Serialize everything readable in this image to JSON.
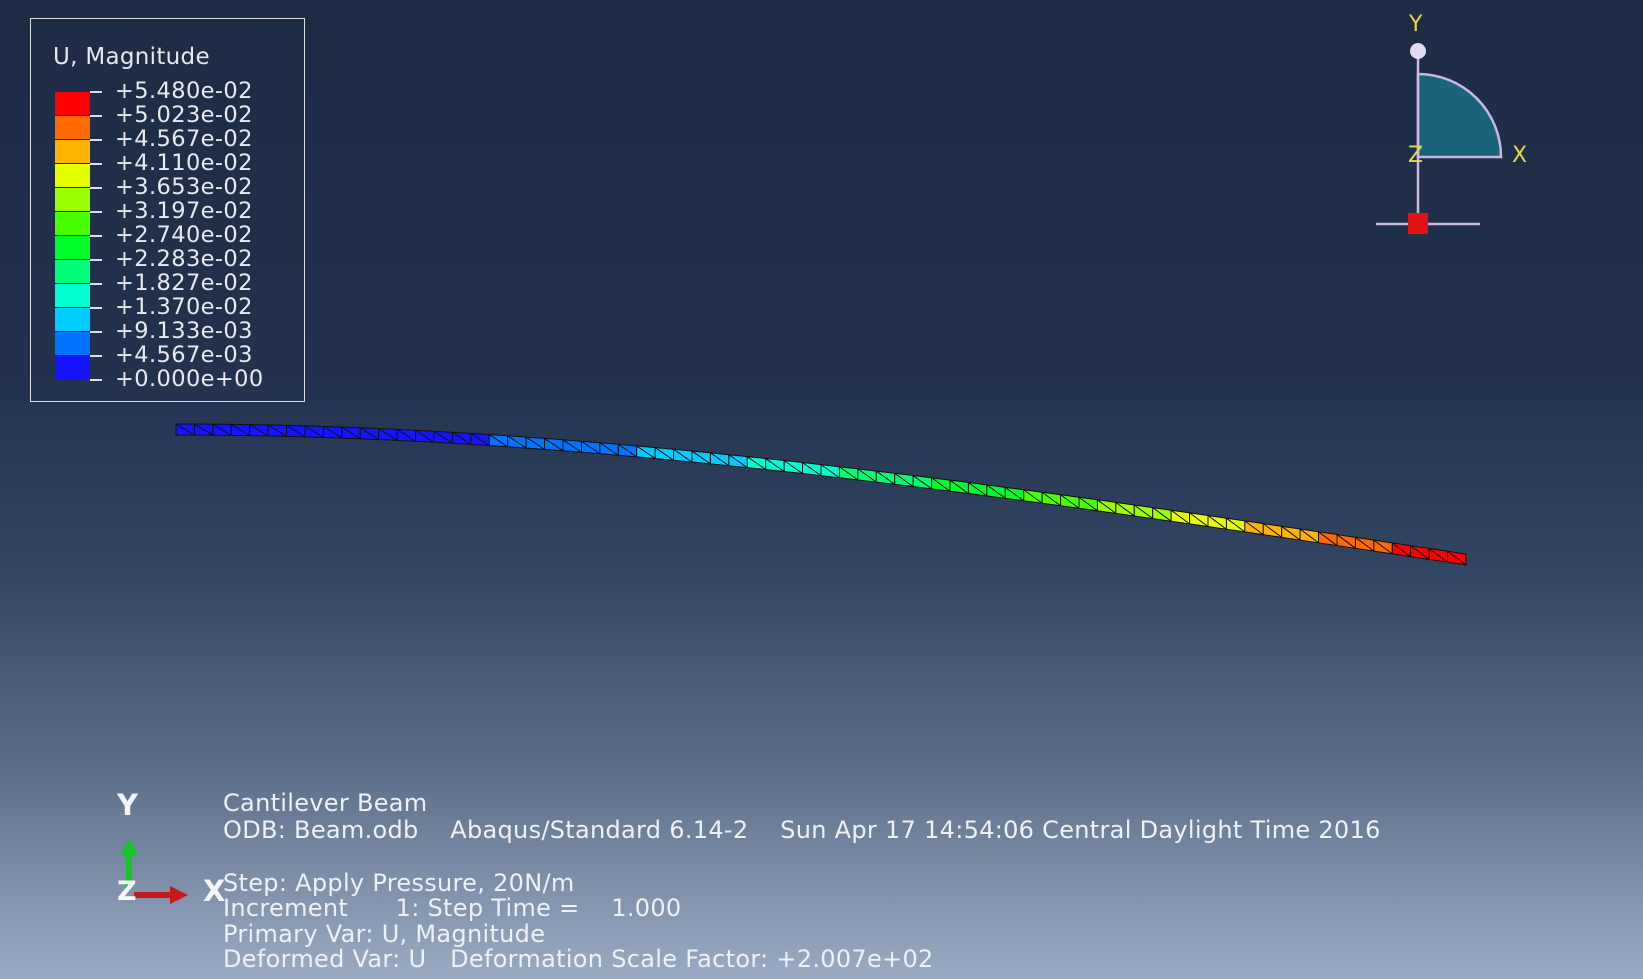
{
  "legend": {
    "title": "U, Magnitude",
    "values": [
      "+5.480e-02",
      "+5.023e-02",
      "+4.567e-02",
      "+4.110e-02",
      "+3.653e-02",
      "+3.197e-02",
      "+2.740e-02",
      "+2.283e-02",
      "+1.827e-02",
      "+1.370e-02",
      "+9.133e-03",
      "+4.567e-03",
      "+0.000e+00"
    ],
    "colors": [
      "#ff0000",
      "#ff6a00",
      "#ffb400",
      "#e6ff00",
      "#9cff00",
      "#46ff00",
      "#00ff2a",
      "#00ff78",
      "#00ffd0",
      "#00ccff",
      "#0073ff",
      "#1414ff"
    ]
  },
  "view_triad": {
    "y_label": "Y",
    "x_label": "X",
    "z_label": "Z",
    "axis_color": "#c9b6e2",
    "label_color": "#e5d84a",
    "fill_color": "#1a6378",
    "origin_marker_color": "#e11414"
  },
  "global_triad": {
    "y_label": "Y",
    "x_label": "X",
    "z_label": "Z",
    "y_color": "#17c42a",
    "x_color": "#c41a1a"
  },
  "info": {
    "title": "Cantilever Beam",
    "odb_line": "ODB: Beam.odb    Abaqus/Standard 6.14-2    Sun Apr 17 14:54:06 Central Daylight Time 2016",
    "step_line": "Step: Apply Pressure, 20N/m",
    "increment_line": "Increment      1: Step Time =    1.000",
    "primary_var_line": "Primary Var: U, Magnitude",
    "deformed_var_line": "Deformed Var: U   Deformation Scale Factor: +2.007e+02"
  },
  "beam": {
    "element_count": 70,
    "max_displacement": 0.0548,
    "outline_color": "#111111"
  }
}
